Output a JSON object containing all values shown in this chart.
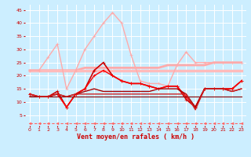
{
  "xlabel": "Vent moyen/en rafales ( km/h )",
  "bg_color": "#cceeff",
  "grid_color": "#ffffff",
  "xlim": [
    -0.5,
    23.5
  ],
  "ylim": [
    1,
    47
  ],
  "yticks": [
    5,
    10,
    15,
    20,
    25,
    30,
    35,
    40,
    45
  ],
  "xticks": [
    0,
    1,
    2,
    3,
    4,
    5,
    6,
    7,
    8,
    9,
    10,
    11,
    12,
    13,
    14,
    15,
    16,
    17,
    18,
    19,
    20,
    21,
    22,
    23
  ],
  "series": [
    {
      "x": [
        0,
        1,
        2,
        3,
        4,
        5,
        6,
        7,
        8,
        9,
        10,
        11,
        12,
        13,
        14,
        15,
        16,
        17,
        18,
        19,
        20,
        21,
        22,
        23
      ],
      "y": [
        22,
        22,
        22,
        22,
        22,
        22,
        23,
        23,
        23,
        23,
        23,
        23,
        23,
        23,
        23,
        24,
        24,
        24,
        24,
        24,
        25,
        25,
        25,
        25
      ],
      "color": "#ffaaaa",
      "lw": 2.0,
      "marker": null,
      "ms": 0,
      "dashes": []
    },
    {
      "x": [
        0,
        1,
        2,
        3,
        4,
        5,
        6,
        7,
        8,
        9,
        10,
        11,
        12,
        13,
        14,
        15,
        16,
        17,
        18,
        19,
        20,
        21,
        22,
        23
      ],
      "y": [
        22,
        22,
        22,
        22,
        22,
        22,
        22,
        22,
        22,
        22,
        22,
        22,
        22,
        22,
        22,
        22,
        22,
        22,
        22,
        22,
        22,
        22,
        22,
        22
      ],
      "color": "#ffbbbb",
      "lw": 2.5,
      "marker": null,
      "ms": 0,
      "dashes": []
    },
    {
      "x": [
        0,
        1,
        2,
        3,
        4,
        5,
        6,
        7,
        8,
        9,
        10,
        11,
        12,
        13,
        14,
        15,
        16,
        17,
        18,
        19,
        20,
        21,
        22,
        23
      ],
      "y": [
        22,
        22,
        27,
        32,
        15,
        22,
        30,
        35,
        40,
        44,
        40,
        28,
        18,
        17,
        17,
        16,
        24,
        29,
        25,
        25,
        25,
        25,
        25,
        25
      ],
      "color": "#ffaaaa",
      "lw": 1.0,
      "marker": "+",
      "ms": 3.5,
      "dashes": []
    },
    {
      "x": [
        0,
        1,
        2,
        3,
        4,
        5,
        6,
        7,
        8,
        9,
        10,
        11,
        12,
        13,
        14,
        15,
        16,
        17,
        18,
        19,
        20,
        21,
        22,
        23
      ],
      "y": [
        13,
        12,
        12,
        14,
        8,
        13,
        15,
        22,
        25,
        20,
        18,
        17,
        17,
        16,
        15,
        16,
        16,
        11,
        8,
        15,
        15,
        15,
        15,
        18
      ],
      "color": "#cc0000",
      "lw": 1.2,
      "marker": "+",
      "ms": 3.5,
      "dashes": []
    },
    {
      "x": [
        0,
        1,
        2,
        3,
        4,
        5,
        6,
        7,
        8,
        9,
        10,
        11,
        12,
        13,
        14,
        15,
        16,
        17,
        18,
        19,
        20,
        21,
        22,
        23
      ],
      "y": [
        13,
        12,
        12,
        13,
        8,
        13,
        15,
        20,
        22,
        20,
        18,
        17,
        17,
        16,
        15,
        16,
        16,
        12,
        8,
        15,
        15,
        15,
        15,
        18
      ],
      "color": "#ff0000",
      "lw": 1.0,
      "marker": "+",
      "ms": 3.0,
      "dashes": []
    },
    {
      "x": [
        0,
        1,
        2,
        3,
        4,
        5,
        6,
        7,
        8,
        9,
        10,
        11,
        12,
        13,
        14,
        15,
        16,
        17,
        18,
        19,
        20,
        21,
        22,
        23
      ],
      "y": [
        12,
        12,
        12,
        13,
        12,
        13,
        14,
        15,
        14,
        14,
        14,
        14,
        14,
        14,
        15,
        15,
        15,
        13,
        8,
        15,
        15,
        15,
        14,
        15
      ],
      "color": "#aa0000",
      "lw": 1.0,
      "marker": null,
      "ms": 0,
      "dashes": []
    },
    {
      "x": [
        0,
        1,
        2,
        3,
        4,
        5,
        6,
        7,
        8,
        9,
        10,
        11,
        12,
        13,
        14,
        15,
        16,
        17,
        18,
        19,
        20,
        21,
        22,
        23
      ],
      "y": [
        12,
        12,
        12,
        12,
        12,
        12,
        12,
        12,
        12,
        12,
        12,
        12,
        12,
        12,
        12,
        12,
        12,
        12,
        12,
        12,
        12,
        12,
        12,
        12
      ],
      "color": "#880000",
      "lw": 0.8,
      "marker": null,
      "ms": 0,
      "dashes": []
    },
    {
      "x": [
        0,
        1,
        2,
        3,
        4,
        5,
        6,
        7,
        8,
        9,
        10,
        11,
        12,
        13,
        14,
        15,
        16,
        17,
        18,
        19,
        20,
        21,
        22,
        23
      ],
      "y": [
        13,
        12,
        12,
        13,
        12,
        13,
        13,
        13,
        13,
        13,
        13,
        13,
        13,
        13,
        13,
        13,
        13,
        13,
        7,
        15,
        15,
        15,
        14,
        15
      ],
      "color": "#cc2222",
      "lw": 1.0,
      "marker": null,
      "ms": 0,
      "dashes": []
    },
    {
      "x": [
        0,
        1,
        2,
        3,
        4,
        5,
        6,
        7,
        8,
        9,
        10,
        11,
        12,
        13,
        14,
        15,
        16,
        17,
        18,
        19,
        20,
        21,
        22,
        23
      ],
      "y": [
        2,
        2,
        2,
        2,
        2,
        2,
        2,
        2,
        2,
        2,
        2,
        2,
        2,
        2,
        2,
        2,
        2,
        2,
        2,
        2,
        2,
        2,
        2,
        2
      ],
      "color": "#ff6666",
      "lw": 0.8,
      "marker": "<",
      "ms": 2.0,
      "dashes": [
        3,
        2
      ]
    }
  ]
}
